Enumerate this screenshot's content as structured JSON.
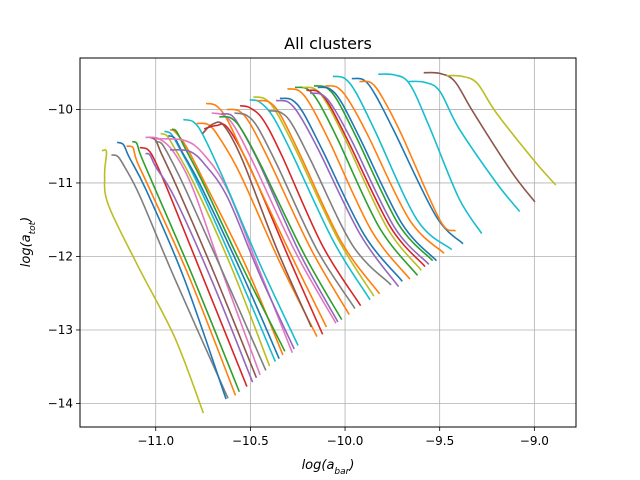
{
  "chart_data": {
    "type": "line",
    "title": "All clusters",
    "xlabel": {
      "base": "log(a",
      "sub": "bar",
      "close": ")"
    },
    "ylabel": {
      "base": "log(a",
      "sub": "tot",
      "close": ")"
    },
    "xlim": [
      -11.4,
      -8.78
    ],
    "ylim": [
      -14.32,
      -9.3
    ],
    "xticks": [
      -11.0,
      -10.5,
      -10.0,
      -9.5,
      -9.0
    ],
    "xtick_labels": [
      "−11.0",
      "−10.5",
      "−10.0",
      "−9.5",
      "−9.0"
    ],
    "yticks": [
      -14,
      -13,
      -12,
      -11,
      -10
    ],
    "ytick_labels": [
      "−14",
      "−13",
      "−12",
      "−11",
      "−10"
    ],
    "grid": true,
    "palette": [
      "#1f77b4",
      "#ff7f0e",
      "#2ca02c",
      "#d62728",
      "#9467bd",
      "#8c564b",
      "#e377c2",
      "#7f7f7f",
      "#bcbd22",
      "#17becf"
    ],
    "series": [
      {
        "color": "#bcbd22",
        "x": [
          -11.28,
          -11.26,
          -11.27,
          -11.25,
          -11.1,
          -10.9,
          -10.75
        ],
        "y": [
          -10.56,
          -10.58,
          -10.9,
          -11.3,
          -12.1,
          -13.1,
          -14.12
        ]
      },
      {
        "color": "#7f7f7f",
        "x": [
          -11.23,
          -11.2,
          -11.16,
          -11.08,
          -10.9,
          -10.62
        ],
        "y": [
          -10.62,
          -10.64,
          -10.8,
          -11.2,
          -12.3,
          -13.92
        ]
      },
      {
        "color": "#1f77b4",
        "x": [
          -11.2,
          -11.17,
          -11.14,
          -11.05,
          -10.85,
          -10.63
        ],
        "y": [
          -10.45,
          -10.48,
          -10.65,
          -11.1,
          -12.3,
          -13.93
        ]
      },
      {
        "color": "#ff7f0e",
        "x": [
          -11.15,
          -11.12,
          -11.1,
          -11.02,
          -10.82,
          -10.58
        ],
        "y": [
          -10.5,
          -10.52,
          -10.7,
          -11.15,
          -12.3,
          -13.88
        ]
      },
      {
        "color": "#2ca02c",
        "x": [
          -11.12,
          -11.1,
          -11.08,
          -11.0,
          -10.8,
          -10.56
        ],
        "y": [
          -10.44,
          -10.46,
          -10.62,
          -11.1,
          -12.3,
          -13.83
        ]
      },
      {
        "color": "#d62728",
        "x": [
          -11.08,
          -11.04,
          -11.0,
          -10.92,
          -10.74,
          -10.52
        ],
        "y": [
          -10.52,
          -10.55,
          -10.72,
          -11.2,
          -12.35,
          -13.76
        ]
      },
      {
        "color": "#9467bd",
        "x": [
          -11.05,
          -11.03,
          -11.0,
          -10.9,
          -10.7,
          -10.49
        ],
        "y": [
          -10.6,
          -10.62,
          -10.78,
          -11.2,
          -12.35,
          -13.7
        ]
      },
      {
        "color": "#8c564b",
        "x": [
          -11.03,
          -11.0,
          -10.97,
          -10.88,
          -10.68,
          -10.47
        ],
        "y": [
          -10.38,
          -10.42,
          -10.6,
          -11.1,
          -12.3,
          -13.64
        ]
      },
      {
        "color": "#e377c2",
        "x": [
          -11.05,
          -10.98,
          -10.9,
          -10.8,
          -10.65,
          -10.45
        ],
        "y": [
          -10.38,
          -10.4,
          -10.6,
          -11.1,
          -12.2,
          -13.6
        ]
      },
      {
        "color": "#7f7f7f",
        "x": [
          -11.0,
          -10.97,
          -10.93,
          -10.84,
          -10.64,
          -10.42
        ],
        "y": [
          -10.44,
          -10.46,
          -10.63,
          -11.1,
          -12.25,
          -13.54
        ]
      },
      {
        "color": "#bcbd22",
        "x": [
          -10.97,
          -10.94,
          -10.9,
          -10.8,
          -10.6,
          -10.4
        ],
        "y": [
          -10.33,
          -10.36,
          -10.53,
          -11.0,
          -12.15,
          -13.48
        ]
      },
      {
        "color": "#17becf",
        "x": [
          -10.95,
          -10.92,
          -10.88,
          -10.78,
          -10.58,
          -10.37
        ],
        "y": [
          -10.3,
          -10.33,
          -10.5,
          -11.0,
          -12.15,
          -13.42
        ]
      },
      {
        "color": "#1f77b4",
        "x": [
          -10.93,
          -10.9,
          -10.86,
          -10.76,
          -10.55,
          -10.35
        ],
        "y": [
          -10.36,
          -10.39,
          -10.58,
          -11.05,
          -12.2,
          -13.38
        ]
      },
      {
        "color": "#ff7f0e",
        "x": [
          -10.92,
          -10.9,
          -10.84,
          -10.74,
          -10.52,
          -10.33
        ],
        "y": [
          -10.28,
          -10.3,
          -10.5,
          -11.0,
          -12.15,
          -13.33
        ]
      },
      {
        "color": "#2ca02c",
        "x": [
          -10.91,
          -10.89,
          -10.85,
          -10.75,
          -10.55,
          -10.32
        ],
        "y": [
          -10.27,
          -10.3,
          -10.5,
          -11.0,
          -12.1,
          -13.28
        ]
      },
      {
        "color": "#e377c2",
        "x": [
          -11.0,
          -10.85,
          -10.75,
          -10.62,
          -10.45,
          -10.28
        ],
        "y": [
          -10.4,
          -10.42,
          -10.6,
          -11.1,
          -12.2,
          -13.3
        ]
      },
      {
        "color": "#9467bd",
        "x": [
          -10.92,
          -10.82,
          -10.74,
          -10.62,
          -10.45,
          -10.27
        ],
        "y": [
          -10.55,
          -10.57,
          -10.75,
          -11.2,
          -12.25,
          -13.25
        ]
      },
      {
        "color": "#17becf",
        "x": [
          -10.85,
          -10.8,
          -10.75,
          -10.65,
          -10.45,
          -10.25
        ],
        "y": [
          -10.14,
          -10.17,
          -10.35,
          -10.9,
          -12.1,
          -13.2
        ]
      },
      {
        "color": "#ff7f0e",
        "x": [
          -10.78,
          -10.72,
          -10.66,
          -10.55,
          -10.35,
          -10.15
        ],
        "y": [
          -10.19,
          -10.21,
          -10.4,
          -10.9,
          -12.05,
          -13.08
        ]
      },
      {
        "color": "#8c564b",
        "x": [
          -10.75,
          -10.7,
          -10.64,
          -10.54,
          -10.36,
          -10.18
        ],
        "y": [
          -10.32,
          -10.2,
          -10.22,
          -10.7,
          -11.9,
          -12.95
        ]
      },
      {
        "color": "#d62728",
        "x": [
          -10.74,
          -10.68,
          -10.62,
          -10.5,
          -10.3,
          -10.12
        ],
        "y": [
          -10.26,
          -10.22,
          -10.25,
          -10.8,
          -12.0,
          -13.05
        ]
      },
      {
        "color": "#ff7f0e",
        "x": [
          -10.73,
          -10.68,
          -10.62,
          -10.52,
          -10.3,
          -10.1
        ],
        "y": [
          -9.92,
          -9.95,
          -10.15,
          -10.7,
          -11.9,
          -12.95
        ]
      },
      {
        "color": "#e377c2",
        "x": [
          -10.7,
          -10.64,
          -10.58,
          -10.48,
          -10.26,
          -10.05
        ],
        "y": [
          -10.05,
          -10.08,
          -10.25,
          -10.75,
          -11.95,
          -12.9
        ]
      },
      {
        "color": "#9467bd",
        "x": [
          -10.65,
          -10.6,
          -10.55,
          -10.45,
          -10.24,
          -10.04
        ],
        "y": [
          -10.06,
          -10.08,
          -10.26,
          -10.75,
          -11.95,
          -12.88
        ]
      },
      {
        "color": "#2ca02c",
        "x": [
          -10.66,
          -10.6,
          -10.54,
          -10.44,
          -10.22,
          -10.02
        ],
        "y": [
          -10.1,
          -10.12,
          -10.3,
          -10.78,
          -11.95,
          -12.85
        ]
      },
      {
        "color": "#ff7f0e",
        "x": [
          -10.62,
          -10.56,
          -10.5,
          -10.4,
          -10.18,
          -9.98
        ],
        "y": [
          -10.0,
          -10.02,
          -10.2,
          -10.7,
          -11.9,
          -12.78
        ]
      },
      {
        "color": "#7f7f7f",
        "x": [
          -10.58,
          -10.52,
          -10.46,
          -10.36,
          -10.15,
          -9.95
        ],
        "y": [
          -10.05,
          -10.08,
          -10.25,
          -10.75,
          -11.9,
          -12.7
        ]
      },
      {
        "color": "#d62728",
        "x": [
          -10.55,
          -10.5,
          -10.43,
          -10.33,
          -10.12,
          -9.92
        ],
        "y": [
          -9.95,
          -9.98,
          -10.15,
          -10.65,
          -11.85,
          -12.66
        ]
      },
      {
        "color": "#17becf",
        "x": [
          -10.5,
          -10.45,
          -10.38,
          -10.28,
          -10.06,
          -9.87
        ],
        "y": [
          -9.87,
          -9.9,
          -10.1,
          -10.6,
          -11.8,
          -12.58
        ]
      },
      {
        "color": "#bcbd22",
        "x": [
          -10.48,
          -10.42,
          -10.36,
          -10.26,
          -10.04,
          -9.85
        ],
        "y": [
          -9.83,
          -9.86,
          -10.05,
          -10.55,
          -11.75,
          -12.53
        ]
      },
      {
        "color": "#ff7f0e",
        "x": [
          -10.46,
          -10.4,
          -10.34,
          -10.24,
          -10.02,
          -9.82
        ],
        "y": [
          -9.88,
          -9.9,
          -10.08,
          -10.6,
          -11.8,
          -12.5
        ]
      },
      {
        "color": "#9467bd",
        "x": [
          -10.36,
          -10.3,
          -10.24,
          -10.14,
          -9.92,
          -9.72
        ],
        "y": [
          -9.88,
          -9.9,
          -10.08,
          -10.55,
          -11.7,
          -12.4
        ]
      },
      {
        "color": "#7f7f7f",
        "x": [
          -10.4,
          -10.34,
          -10.28,
          -10.18,
          -9.96,
          -9.76
        ],
        "y": [
          -10.02,
          -10.04,
          -10.2,
          -10.7,
          -11.85,
          -12.38
        ]
      },
      {
        "color": "#1f77b4",
        "x": [
          -10.34,
          -10.28,
          -10.22,
          -10.12,
          -9.9,
          -9.7
        ],
        "y": [
          -9.85,
          -9.87,
          -10.05,
          -10.55,
          -11.7,
          -12.33
        ]
      },
      {
        "color": "#ff7f0e",
        "x": [
          -10.3,
          -10.24,
          -10.18,
          -10.08,
          -9.86,
          -9.66
        ],
        "y": [
          -9.72,
          -9.75,
          -9.95,
          -10.45,
          -11.65,
          -12.3
        ]
      },
      {
        "color": "#2ca02c",
        "x": [
          -10.26,
          -10.2,
          -10.14,
          -10.04,
          -9.82,
          -9.62
        ],
        "y": [
          -9.7,
          -9.72,
          -9.9,
          -10.4,
          -11.6,
          -12.25
        ]
      },
      {
        "color": "#bcbd22",
        "x": [
          -10.22,
          -10.16,
          -10.1,
          -10.0,
          -9.78,
          -9.6
        ],
        "y": [
          -9.7,
          -9.72,
          -9.9,
          -10.4,
          -11.6,
          -12.18
        ]
      },
      {
        "color": "#d62728",
        "x": [
          -10.2,
          -10.14,
          -10.08,
          -9.98,
          -9.76,
          -9.58
        ],
        "y": [
          -9.74,
          -9.76,
          -9.95,
          -10.45,
          -11.6,
          -12.13
        ]
      },
      {
        "color": "#9467bd",
        "x": [
          -10.18,
          -10.12,
          -10.06,
          -9.96,
          -9.74,
          -9.56
        ],
        "y": [
          -9.78,
          -9.8,
          -9.98,
          -10.45,
          -11.6,
          -12.1
        ]
      },
      {
        "color": "#2ca02c",
        "x": [
          -10.16,
          -10.1,
          -10.04,
          -9.94,
          -9.72,
          -9.54
        ],
        "y": [
          -9.68,
          -9.7,
          -9.88,
          -10.38,
          -11.55,
          -12.05
        ]
      },
      {
        "color": "#ff7f0e",
        "x": [
          -10.1,
          -10.04,
          -9.98,
          -9.88,
          -9.66,
          -9.48
        ],
        "y": [
          -9.68,
          -9.7,
          -9.88,
          -10.35,
          -11.5,
          -11.95
        ]
      },
      {
        "color": "#1f77b4",
        "x": [
          -10.14,
          -10.08,
          -10.02,
          -9.92,
          -9.7,
          -9.52
        ],
        "y": [
          -9.7,
          -9.72,
          -9.9,
          -10.4,
          -11.55,
          -12.05
        ]
      },
      {
        "color": "#17becf",
        "x": [
          -10.06,
          -10.0,
          -9.94,
          -9.84,
          -9.62,
          -9.44
        ],
        "y": [
          -9.55,
          -9.58,
          -9.78,
          -10.3,
          -11.5,
          -11.9
        ]
      },
      {
        "color": "#1f77b4",
        "x": [
          -9.96,
          -9.9,
          -9.84,
          -9.74,
          -9.52,
          -9.38
        ],
        "y": [
          -9.58,
          -9.6,
          -9.8,
          -10.3,
          -11.45,
          -11.82
        ]
      },
      {
        "color": "#ff7f0e",
        "x": [
          -9.92,
          -9.86,
          -9.8,
          -9.7,
          -9.5,
          -9.42
        ],
        "y": [
          -9.62,
          -9.64,
          -9.85,
          -10.35,
          -11.5,
          -11.65
        ]
      },
      {
        "color": "#17becf",
        "x": [
          -9.82,
          -9.74,
          -9.66,
          -9.56,
          -9.4,
          -9.28
        ],
        "y": [
          -9.52,
          -9.53,
          -9.65,
          -10.2,
          -11.2,
          -11.68
        ]
      },
      {
        "color": "#17becf",
        "x": [
          -9.66,
          -9.58,
          -9.5,
          -9.4,
          -9.2,
          -9.08
        ],
        "y": [
          -9.62,
          -9.63,
          -9.75,
          -10.25,
          -11.0,
          -11.38
        ]
      },
      {
        "color": "#8c564b",
        "x": [
          -9.58,
          -9.5,
          -9.42,
          -9.32,
          -9.12,
          -9.0
        ],
        "y": [
          -9.5,
          -9.51,
          -9.62,
          -10.05,
          -10.85,
          -11.25
        ]
      },
      {
        "color": "#bcbd22",
        "x": [
          -9.46,
          -9.38,
          -9.3,
          -9.2,
          -9.0,
          -8.89
        ],
        "y": [
          -9.54,
          -9.55,
          -9.65,
          -10.05,
          -10.7,
          -11.02
        ]
      }
    ]
  }
}
